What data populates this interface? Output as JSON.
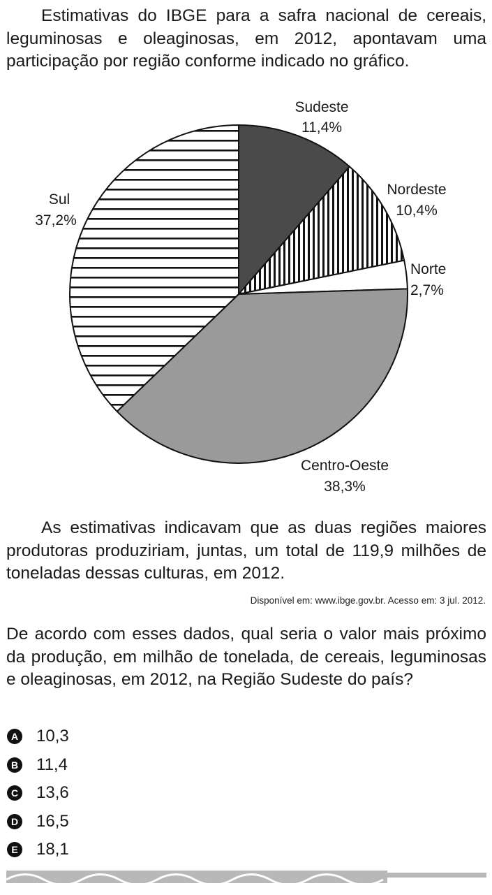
{
  "intro_text": "Estimativas do IBGE para a safra nacional de cereais, leguminosas e oleaginosas, em 2012, apontavam uma participação por região conforme indicado no gráfico.",
  "chart_data": {
    "type": "pie",
    "title": "",
    "slices": [
      {
        "name": "Sudeste",
        "label": "11,4%",
        "value": 11.4,
        "fill": "#4a4a4a",
        "pattern": "solid"
      },
      {
        "name": "Nordeste",
        "label": "10,4%",
        "value": 10.4,
        "fill": "#ffffff",
        "pattern": "vertical-lines"
      },
      {
        "name": "Norte",
        "label": "2,7%",
        "value": 2.7,
        "fill": "#ffffff",
        "pattern": "none"
      },
      {
        "name": "Centro-Oeste",
        "label": "38,3%",
        "value": 38.3,
        "fill": "#9a9a9a",
        "pattern": "solid"
      },
      {
        "name": "Sul",
        "label": "37,2%",
        "value": 37.2,
        "fill": "#ffffff",
        "pattern": "horizontal-lines"
      }
    ]
  },
  "after_text": "As estimativas indicavam que as duas regiões maiores produtoras produziriam, juntas, um total de 119,9 milhões de toneladas dessas culturas, em 2012.",
  "source_text": "Disponível em: www.ibge.gov.br. Acesso em: 3 jul. 2012.",
  "question_text": "De acordo com esses dados, qual seria o valor mais próximo da produção, em milhão de tonelada, de cereais, leguminosas e oleaginosas, em 2012, na Região Sudeste do país?",
  "options": [
    {
      "letter": "A",
      "value": "10,3"
    },
    {
      "letter": "B",
      "value": "11,4"
    },
    {
      "letter": "C",
      "value": "13,6"
    },
    {
      "letter": "D",
      "value": "16,5"
    },
    {
      "letter": "E",
      "value": "18,1"
    }
  ]
}
